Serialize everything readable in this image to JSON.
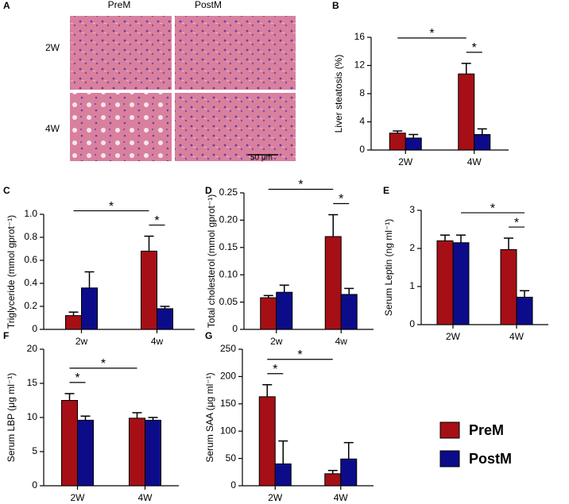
{
  "panel_a": {
    "label": "A",
    "columns": [
      "PreM",
      "PostM"
    ],
    "rows": [
      "2W",
      "4W"
    ],
    "scale_bar": "50 μm"
  },
  "chart_data": [
    {
      "type": "bar",
      "label": "B",
      "ylabel": "Liver steatosis (%)",
      "categories": [
        "2W",
        "4W"
      ],
      "series": [
        {
          "color": "#a50f15",
          "values": [
            2.4,
            10.8
          ],
          "errors": [
            0.3,
            1.5
          ]
        },
        {
          "color": "#0c0c8a",
          "values": [
            1.7,
            2.2
          ],
          "errors": [
            0.5,
            0.8
          ]
        }
      ],
      "ylim": [
        0,
        16
      ],
      "yticks": [
        0,
        4,
        8,
        12,
        16
      ],
      "significance": [
        {
          "label": "*",
          "from": [
            1,
            0
          ],
          "to": [
            1,
            1
          ]
        },
        {
          "label": "*",
          "from": [
            0,
            0
          ],
          "to": [
            1,
            0
          ]
        }
      ]
    },
    {
      "type": "bar",
      "label": "C",
      "ylabel": "Triglyceride (mmol gprot⁻¹)",
      "categories": [
        "2w",
        "4w"
      ],
      "series": [
        {
          "color": "#a50f15",
          "values": [
            0.12,
            0.68
          ],
          "errors": [
            0.03,
            0.13
          ]
        },
        {
          "color": "#0c0c8a",
          "values": [
            0.36,
            0.18
          ],
          "errors": [
            0.14,
            0.02
          ]
        }
      ],
      "ylim": [
        0,
        1
      ],
      "yticks": [
        0,
        0.2,
        0.4,
        0.6,
        0.8,
        {
          "value": 1,
          "label": "1.0"
        }
      ],
      "significance": [
        {
          "label": "*",
          "from": [
            1,
            0
          ],
          "to": [
            1,
            1
          ]
        },
        {
          "label": "*",
          "from": [
            0,
            0
          ],
          "to": [
            1,
            0
          ]
        }
      ]
    },
    {
      "type": "bar",
      "label": "D",
      "ylabel": "Total cholesterol (mmol gprot⁻¹)",
      "categories": [
        "2w",
        "4w"
      ],
      "series": [
        {
          "color": "#a50f15",
          "values": [
            0.058,
            0.17
          ],
          "errors": [
            0.004,
            0.04
          ]
        },
        {
          "color": "#0c0c8a",
          "values": [
            0.068,
            0.064
          ],
          "errors": [
            0.013,
            0.011
          ]
        }
      ],
      "ylim": [
        0,
        0.25
      ],
      "yticks": [
        0,
        0.05,
        {
          "value": 0.1,
          "label": "0.10"
        },
        0.15,
        {
          "value": 0.2,
          "label": "0.20"
        },
        0.25
      ],
      "significance": [
        {
          "label": "*",
          "from": [
            1,
            0
          ],
          "to": [
            1,
            1
          ]
        },
        {
          "label": "*",
          "from": [
            0,
            0
          ],
          "to": [
            1,
            0
          ]
        }
      ]
    },
    {
      "type": "bar",
      "label": "E",
      "ylabel": "Serum Leptin (ng ml⁻¹)",
      "categories": [
        "2W",
        "4W"
      ],
      "series": [
        {
          "color": "#a50f15",
          "values": [
            2.2,
            1.97
          ],
          "errors": [
            0.15,
            0.3
          ]
        },
        {
          "color": "#0c0c8a",
          "values": [
            2.15,
            0.72
          ],
          "errors": [
            0.2,
            0.17
          ]
        }
      ],
      "ylim": [
        0,
        3
      ],
      "yticks": [
        0,
        1,
        2,
        3
      ],
      "significance": [
        {
          "label": "*",
          "from": [
            1,
            0
          ],
          "to": [
            1,
            1
          ]
        },
        {
          "label": "*",
          "from": [
            0,
            1
          ],
          "to": [
            1,
            1
          ]
        }
      ]
    },
    {
      "type": "bar",
      "label": "F",
      "ylabel": "Serum LBP (μg ml⁻¹)",
      "categories": [
        "2W",
        "4W"
      ],
      "series": [
        {
          "color": "#a50f15",
          "values": [
            12.5,
            9.9
          ],
          "errors": [
            1,
            0.8
          ]
        },
        {
          "color": "#0c0c8a",
          "values": [
            9.6,
            9.6
          ],
          "errors": [
            0.6,
            0.4
          ]
        }
      ],
      "ylim": [
        0,
        20
      ],
      "yticks": [
        0,
        5,
        10,
        15,
        20
      ],
      "significance": [
        {
          "label": "*",
          "from": [
            0,
            0
          ],
          "to": [
            0,
            1
          ]
        },
        {
          "label": "*",
          "from": [
            0,
            0
          ],
          "to": [
            1,
            0
          ]
        }
      ]
    },
    {
      "type": "bar",
      "label": "G",
      "ylabel": "Serum SAA (μg ml⁻¹)",
      "categories": [
        "2W",
        "4W"
      ],
      "series": [
        {
          "name": "PreM",
          "color": "#a50f15",
          "values": [
            163,
            22
          ],
          "errors": [
            22,
            6
          ]
        },
        {
          "name": "PostM",
          "color": "#0c0c8a",
          "values": [
            40,
            49
          ],
          "errors": [
            42,
            30
          ]
        }
      ],
      "ylim": [
        0,
        250
      ],
      "yticks": [
        0,
        50,
        100,
        150,
        200,
        250
      ],
      "legend": "right",
      "significance": [
        {
          "label": "*",
          "from": [
            0,
            0
          ],
          "to": [
            0,
            1
          ]
        },
        {
          "label": "*",
          "from": [
            0,
            0
          ],
          "to": [
            1,
            0
          ]
        }
      ]
    }
  ]
}
